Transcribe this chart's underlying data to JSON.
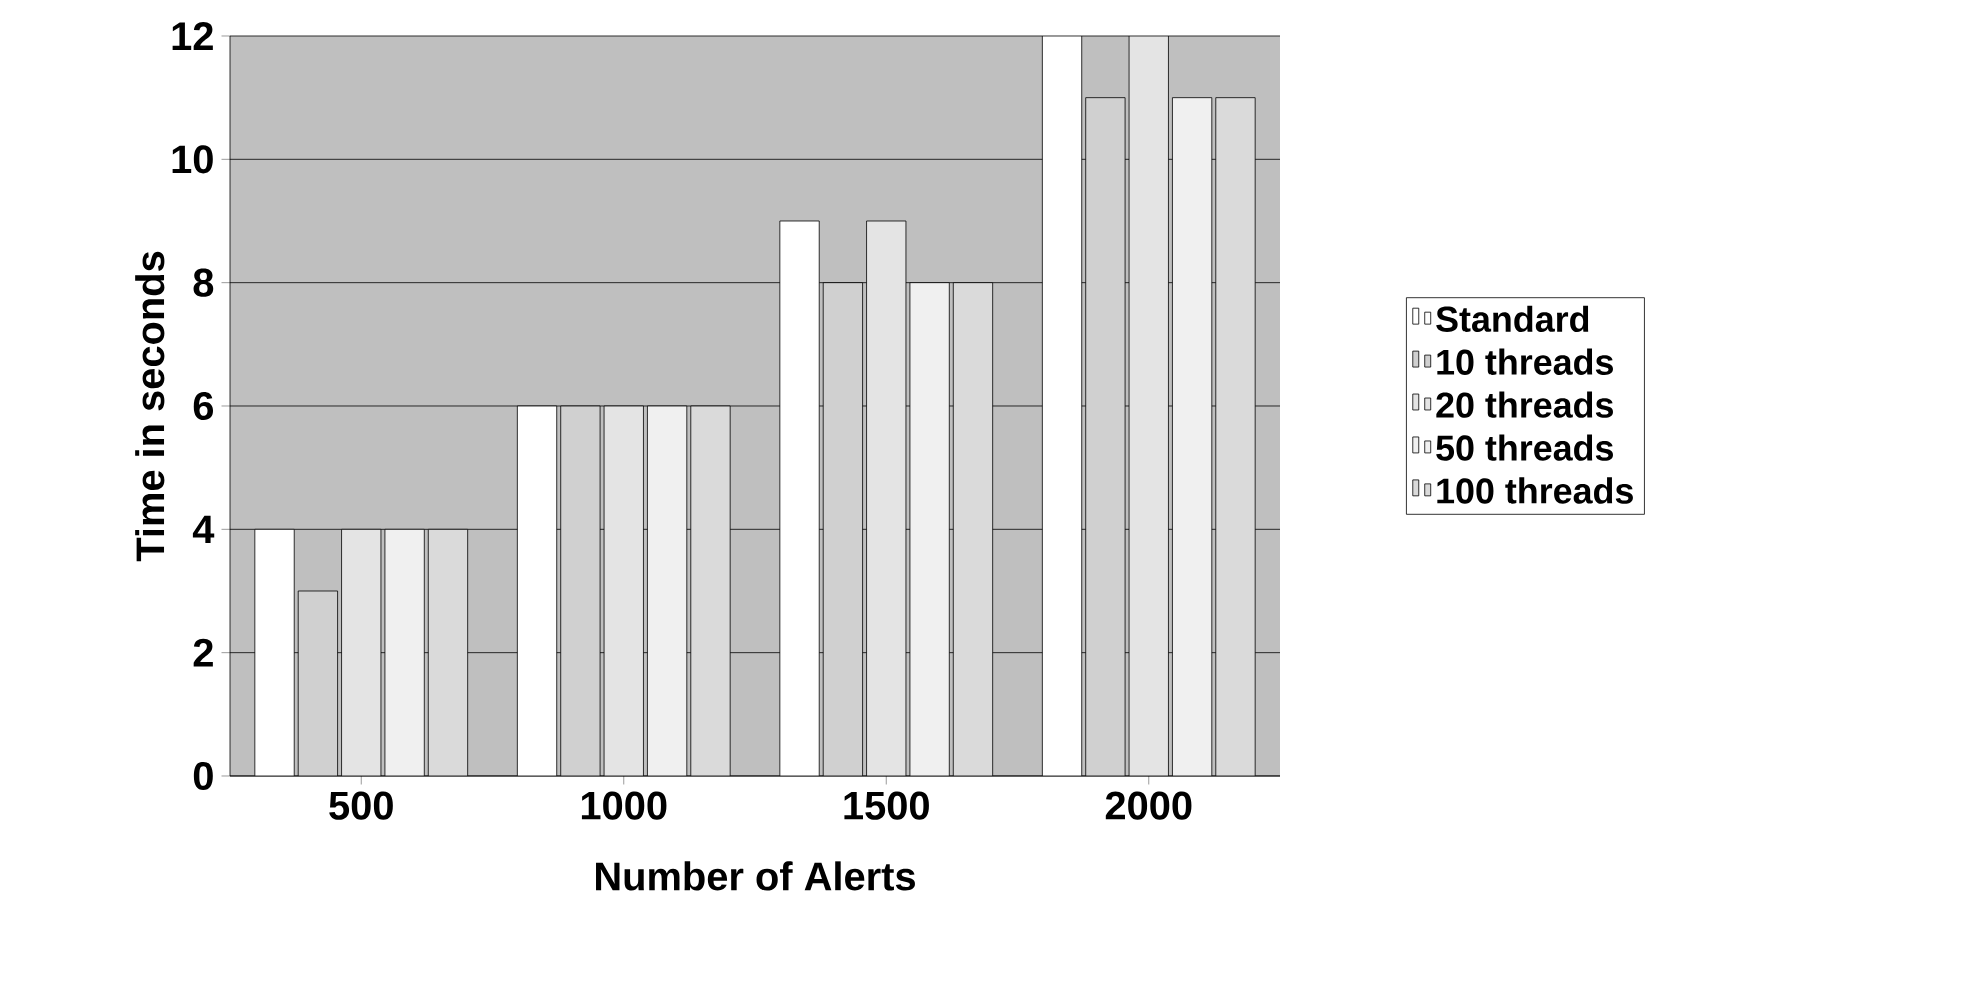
{
  "chart_data": {
    "type": "bar",
    "xlabel": "Number of Alerts",
    "ylabel": "Time in seconds",
    "categories": [
      "500",
      "1000",
      "1500",
      "2000"
    ],
    "series": [
      {
        "name": "Standard",
        "color": "#ffffff",
        "values": [
          4,
          6,
          9,
          12
        ]
      },
      {
        "name": "10 threads",
        "color": "#d0d0d0",
        "values": [
          3,
          6,
          8,
          11
        ]
      },
      {
        "name": "20 threads",
        "color": "#e4e4e4",
        "values": [
          4,
          6,
          9,
          12
        ]
      },
      {
        "name": "50 threads",
        "color": "#f0f0f0",
        "values": [
          4,
          6,
          8,
          11
        ]
      },
      {
        "name": "100 threads",
        "color": "#dadada",
        "values": [
          4,
          6,
          8,
          11
        ]
      }
    ],
    "ylim": [
      0,
      12
    ],
    "yticks": [
      0,
      2,
      4,
      6,
      8,
      10,
      12
    ],
    "grid": "y",
    "legend": "right"
  }
}
